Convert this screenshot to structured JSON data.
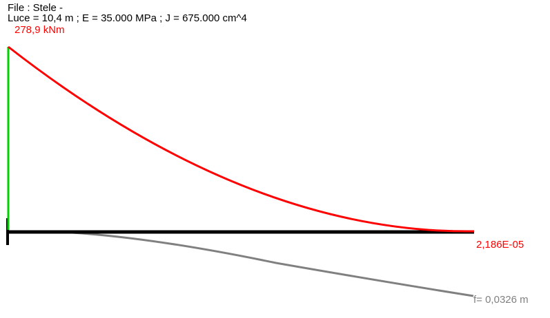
{
  "header": {
    "file": "File : Stele -",
    "params": "Luce =  10,4 m ; E =  35.000 MPa ; J =  675.000 cm^4"
  },
  "labels": {
    "moment_max": "278,9 kNm",
    "moment_end": "2,186E-05",
    "deflection": "f= 0,0326 m"
  },
  "colors": {
    "beam": "#000000",
    "moment": "#ff0000",
    "support": "#00d000",
    "deflection": "#808080"
  }
}
